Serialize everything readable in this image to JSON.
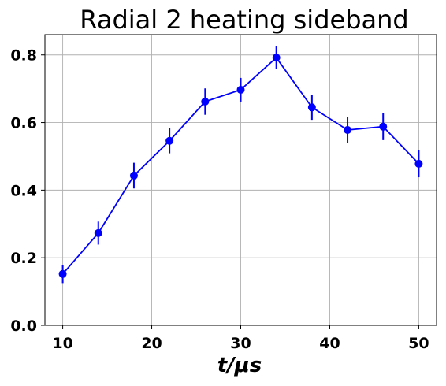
{
  "chart_data": {
    "type": "line",
    "title": "Radial 2 heating sideband",
    "xlabel": "t/μs",
    "ylabel": "",
    "xlim": [
      8,
      52
    ],
    "ylim": [
      0,
      0.86
    ],
    "xticks": [
      10,
      20,
      30,
      40,
      50
    ],
    "yticks": [
      0.0,
      0.2,
      0.4,
      0.6,
      0.8
    ],
    "xtick_labels": [
      "10",
      "20",
      "30",
      "40",
      "50"
    ],
    "ytick_labels": [
      "0.0",
      "0.2",
      "0.4",
      "0.6",
      "0.8"
    ],
    "grid": true,
    "legend": "none",
    "color": "#0000ff",
    "x": [
      10,
      14,
      18,
      22,
      26,
      30,
      34,
      38,
      42,
      46,
      50
    ],
    "y": [
      0.152,
      0.273,
      0.443,
      0.546,
      0.662,
      0.697,
      0.792,
      0.645,
      0.578,
      0.588,
      0.478
    ],
    "yerr": [
      0.027,
      0.034,
      0.038,
      0.037,
      0.039,
      0.035,
      0.033,
      0.037,
      0.038,
      0.04,
      0.04
    ]
  }
}
